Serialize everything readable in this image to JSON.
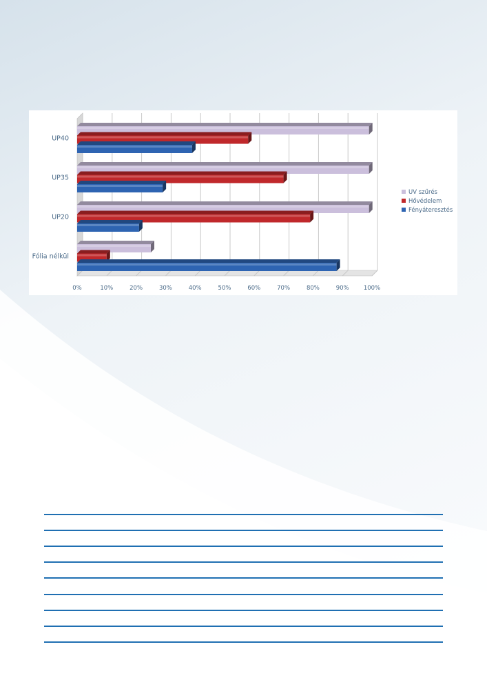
{
  "colors": {
    "page_gradient_top": "#d9e4ec",
    "page_gradient_mid": "#eef3f7",
    "rule": "#1f6fb2",
    "grid": "#c8c8c8",
    "tick_text": "#4a6a88"
  },
  "chart_data": {
    "type": "bar",
    "orientation": "horizontal",
    "style": "3d",
    "categories": [
      "UP40",
      "UP35",
      "UP20",
      "Fólia nélkül"
    ],
    "series": [
      {
        "name": "UV szűrés",
        "color": "#cbbfdc",
        "values": [
          99,
          99,
          99,
          25
        ]
      },
      {
        "name": "Hővédelem",
        "color": "#c0282b",
        "values": [
          58,
          70,
          79,
          10
        ]
      },
      {
        "name": "Fényáteresztés",
        "color": "#2e64b2",
        "values": [
          39,
          29,
          21,
          88
        ]
      }
    ],
    "xticks": [
      "0%",
      "10%",
      "20%",
      "30%",
      "40%",
      "50%",
      "60%",
      "70%",
      "80%",
      "90%",
      "100%"
    ],
    "xlim": [
      0,
      100
    ],
    "grid": true,
    "legend_position": "right"
  },
  "rules": {
    "count": 9
  }
}
